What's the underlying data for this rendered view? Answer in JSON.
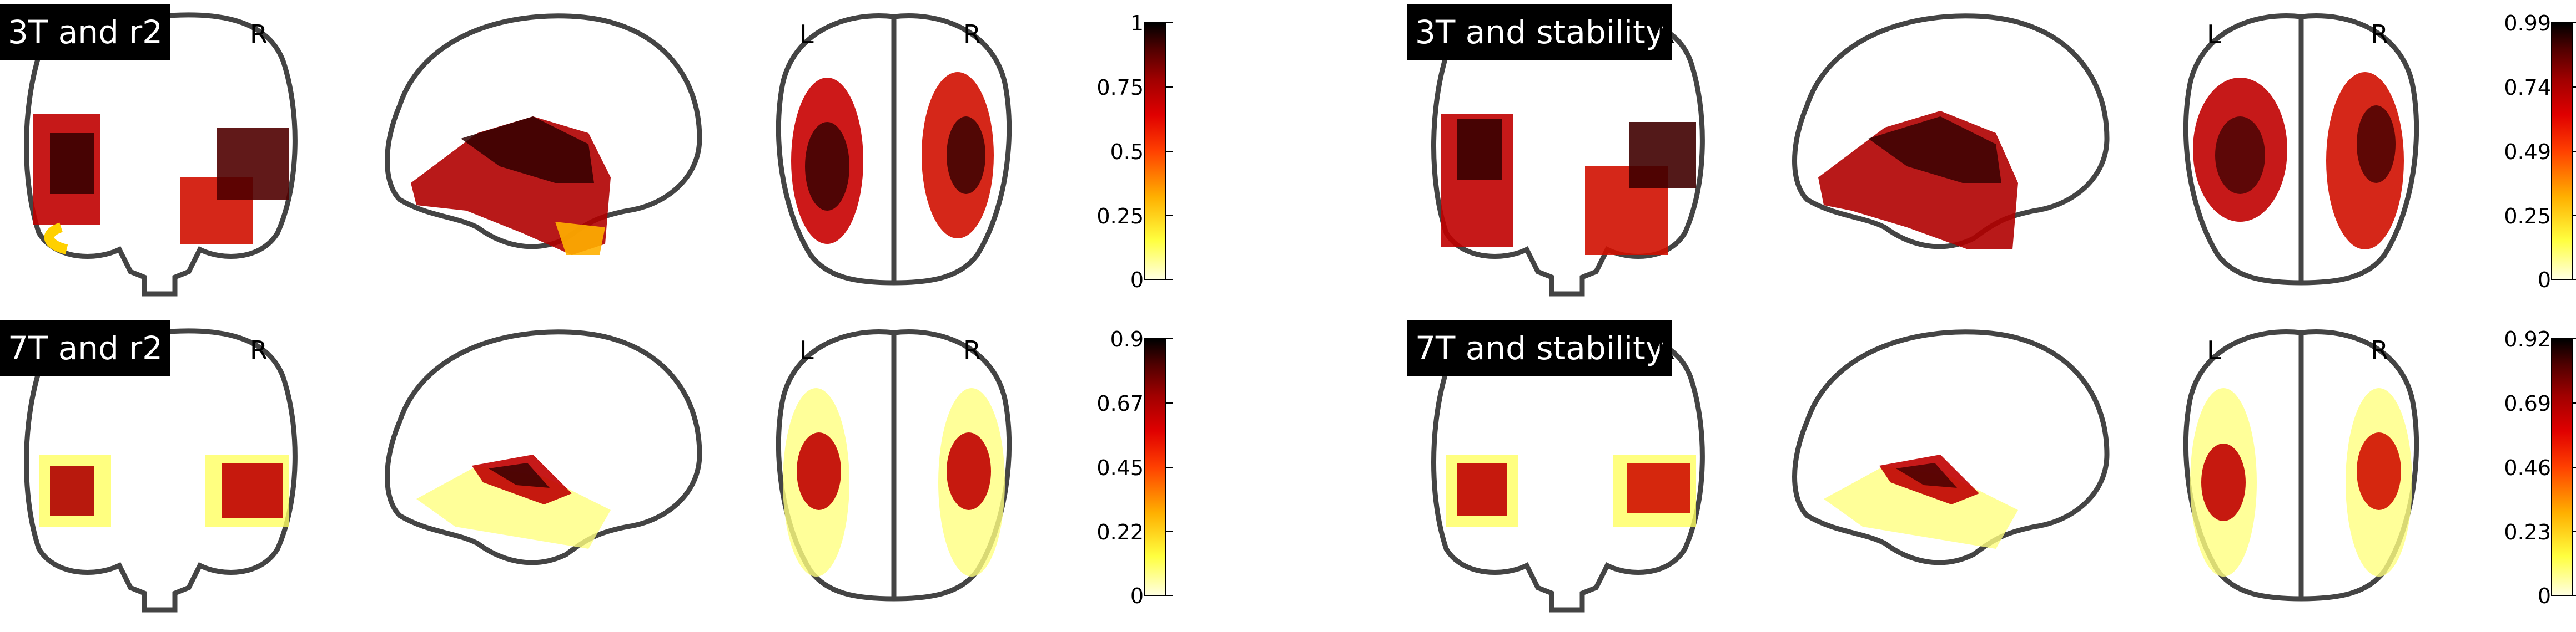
{
  "panels": [
    {
      "title": "3T and r2",
      "cbar_ticks": [
        "1",
        "0.75",
        "0.5",
        "0.25",
        "0"
      ]
    },
    {
      "title": "3T and stability",
      "cbar_ticks": [
        "0.99",
        "0.74",
        "0.49",
        "0.25",
        "0"
      ]
    },
    {
      "title": "7T and r2",
      "cbar_ticks": [
        "0.9",
        "0.67",
        "0.45",
        "0.22",
        "0"
      ]
    },
    {
      "title": "7T and stability",
      "cbar_ticks": [
        "0.92",
        "0.69",
        "0.46",
        "0.23",
        "0"
      ]
    }
  ],
  "orientation_labels": {
    "left": "L",
    "right": "R"
  },
  "colors": {
    "map_low": "#ffff80",
    "map_mid": "#ff2000",
    "map_high": "#300000",
    "outline": "#404040"
  }
}
